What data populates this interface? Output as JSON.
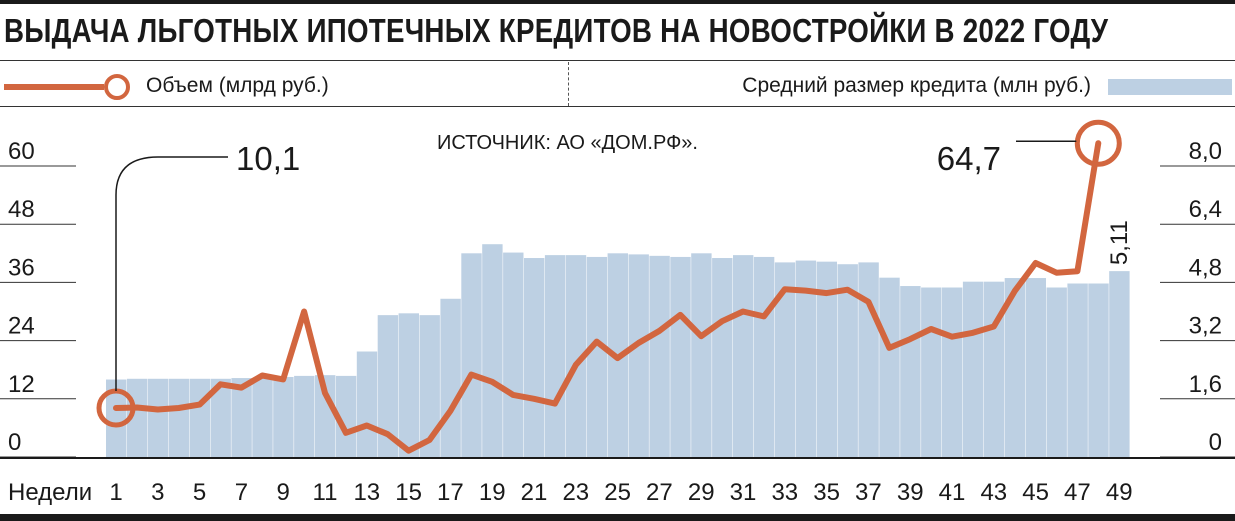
{
  "title": "ВЫДАЧА ЛЬГОТНЫХ ИПОТЕЧНЫХ КРЕДИТОВ НА НОВОСТРОЙКИ В 2022 ГОДУ",
  "legend": {
    "line_label": "Объем (млрд руб.)",
    "bar_label": "Средний размер кредита (млн руб.)"
  },
  "source": "ИСТОЧНИК: АО «ДОМ.РФ».",
  "colors": {
    "line": "#d2663f",
    "bars": "#bdd0e3",
    "text": "#1a1a1a"
  },
  "chart_data": {
    "type": "bar",
    "x_axis": {
      "label": "Недели",
      "tick_labels": [
        "1",
        "3",
        "5",
        "7",
        "9",
        "11",
        "13",
        "15",
        "17",
        "19",
        "21",
        "23",
        "25",
        "27",
        "29",
        "31",
        "33",
        "35",
        "37",
        "39",
        "41",
        "43",
        "45",
        "47",
        "49"
      ]
    },
    "left_axis": {
      "ticks": [
        "0",
        "12",
        "24",
        "36",
        "48",
        "60"
      ],
      "range": [
        0,
        60
      ]
    },
    "right_axis": {
      "ticks": [
        "0",
        "1,6",
        "3,2",
        "4,8",
        "6,4",
        "8,0"
      ],
      "range": [
        0,
        8
      ]
    },
    "weeks": [
      1,
      2,
      3,
      4,
      5,
      6,
      7,
      8,
      9,
      10,
      11,
      12,
      13,
      14,
      15,
      16,
      17,
      18,
      19,
      20,
      21,
      22,
      23,
      24,
      25,
      26,
      27,
      28,
      29,
      30,
      31,
      32,
      33,
      34,
      35,
      36,
      37,
      38,
      39,
      40,
      41,
      42,
      43,
      44,
      45,
      46,
      47,
      48,
      49
    ],
    "series": [
      {
        "name": "Средний размер кредита (млн руб.)",
        "type": "bar",
        "axis": "right",
        "values": [
          2.13,
          2.15,
          2.15,
          2.15,
          2.15,
          2.15,
          2.17,
          2.17,
          2.2,
          2.23,
          2.25,
          2.23,
          2.9,
          3.9,
          3.95,
          3.9,
          4.35,
          5.6,
          5.85,
          5.62,
          5.47,
          5.55,
          5.55,
          5.5,
          5.6,
          5.57,
          5.53,
          5.5,
          5.6,
          5.47,
          5.55,
          5.5,
          5.35,
          5.4,
          5.37,
          5.3,
          5.35,
          4.93,
          4.7,
          4.66,
          4.66,
          4.82,
          4.82,
          4.92,
          4.92,
          4.66,
          4.77,
          4.77,
          5.11
        ]
      },
      {
        "name": "Объем (млрд руб.)",
        "type": "line",
        "axis": "left",
        "values": [
          10.1,
          10.2,
          9.8,
          10.1,
          10.8,
          15.0,
          14.3,
          16.8,
          16.0,
          30.0,
          13.2,
          5.0,
          6.5,
          4.7,
          1.3,
          3.5,
          9.5,
          17.0,
          15.5,
          12.8,
          12.0,
          11.0,
          19.0,
          23.8,
          20.4,
          23.5,
          26.0,
          29.3,
          24.9,
          28.0,
          30.0,
          29.0,
          34.6,
          34.3,
          33.8,
          34.5,
          32.0,
          22.5,
          24.3,
          26.4,
          24.8,
          25.6,
          26.9,
          34.2,
          40.0,
          38.0,
          38.3,
          64.7
        ]
      }
    ],
    "annotations": [
      {
        "week": 1,
        "text": "10,1"
      },
      {
        "week": 48,
        "text": "64,7"
      },
      {
        "week": 49,
        "text": "5,11"
      }
    ]
  }
}
